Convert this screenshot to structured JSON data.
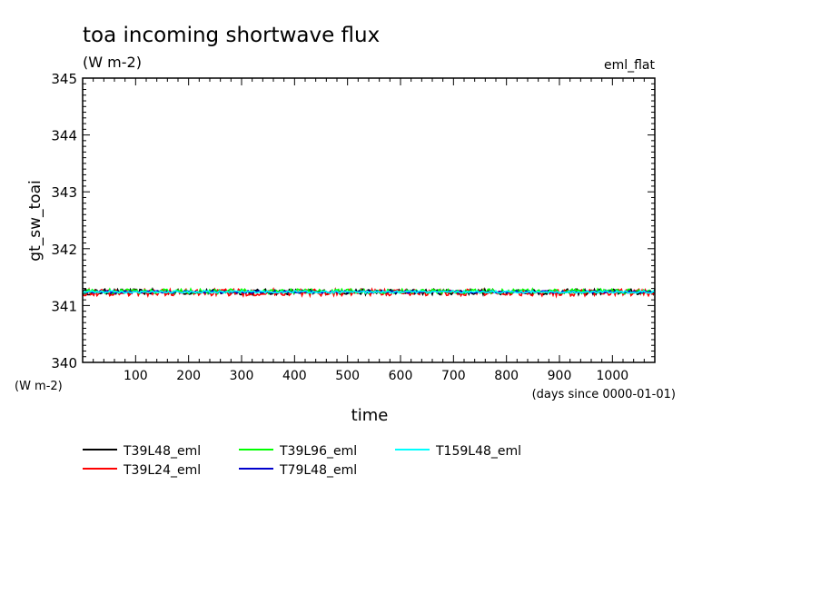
{
  "chart_data": {
    "type": "line",
    "title": "toa incoming shortwave flux",
    "units": "(W m-2)",
    "experiment": "eml_flat",
    "ylabel": "gt_sw_toai",
    "ylabel_units": "(W m-2)",
    "xlabel": "time",
    "xlabel_units": "(days since 0000-01-01)",
    "xlim": [
      0,
      1080
    ],
    "ylim": [
      340,
      345
    ],
    "x_ticks": [
      100,
      200,
      300,
      400,
      500,
      600,
      700,
      800,
      900,
      1000
    ],
    "y_ticks": [
      340,
      341,
      342,
      343,
      344,
      345
    ],
    "legend_position": "bottom",
    "series": [
      {
        "name": "T39L48_eml",
        "color": "#000000",
        "mean": 341.24,
        "spread": 0.05
      },
      {
        "name": "T39L24_eml",
        "color": "#ff0000",
        "mean": 341.23,
        "spread": 0.06
      },
      {
        "name": "T39L96_eml",
        "color": "#00ff00",
        "mean": 341.25,
        "spread": 0.04
      },
      {
        "name": "T79L48_eml",
        "color": "#0000cc",
        "mean": 341.24,
        "spread": 0.02
      },
      {
        "name": "T159L48_eml",
        "color": "#00ffff",
        "mean": 341.24,
        "spread": 0.02
      }
    ]
  }
}
